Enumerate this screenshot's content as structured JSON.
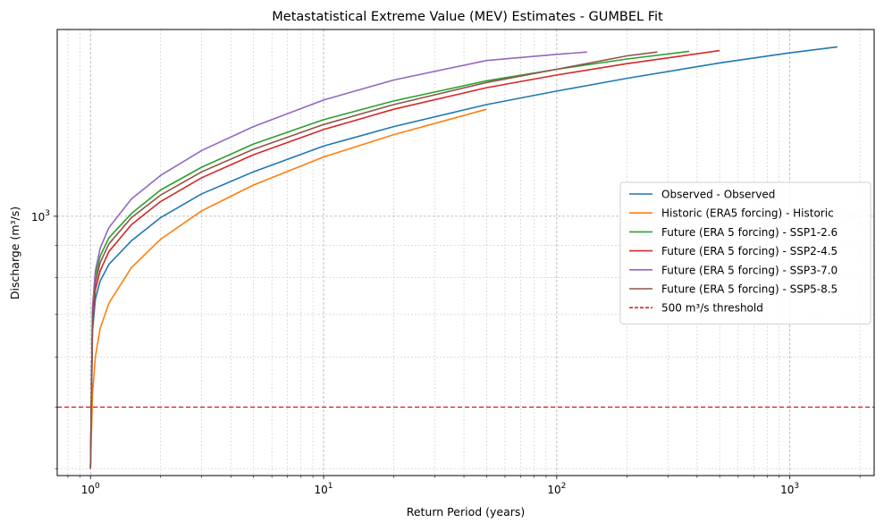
{
  "chart_data": {
    "type": "line",
    "title": "Metastatistical Extreme Value (MEV) Estimates - GUMBEL Fit",
    "xlabel": "Return Period (years)",
    "ylabel": "Discharge (m³/s)",
    "x_scale": "log",
    "y_scale": "log",
    "xlim": [
      0.72,
      2300
    ],
    "ylim": [
      390,
      1970
    ],
    "x_major_ticks": [
      1,
      10,
      100,
      1000
    ],
    "x_tick_labels": [
      {
        "base": "10",
        "exp": "0"
      },
      {
        "base": "10",
        "exp": "1"
      },
      {
        "base": "10",
        "exp": "2"
      },
      {
        "base": "10",
        "exp": "3"
      }
    ],
    "y_major_ticks": [
      1000
    ],
    "y_tick_labels": [
      {
        "base": "10",
        "exp": "3"
      }
    ],
    "y_minor_ticks": [
      400,
      500,
      600,
      700,
      800,
      900,
      2000
    ],
    "grid": true,
    "legend_position": "center-right",
    "series": [
      {
        "name": "Observed - Observed",
        "color": "#1f77b4",
        "style": "solid",
        "x": [
          1.0,
          1.02,
          1.05,
          1.1,
          1.2,
          1.5,
          2,
          3,
          5,
          10,
          20,
          50,
          100,
          200,
          500,
          1000,
          1600
        ],
        "y": [
          400,
          660,
          740,
          790,
          840,
          915,
          995,
          1085,
          1175,
          1290,
          1385,
          1500,
          1575,
          1650,
          1745,
          1810,
          1850
        ]
      },
      {
        "name": "Historic (ERA5 forcing) - Historic",
        "color": "#ff7f0e",
        "style": "solid",
        "x": [
          1.0,
          1.02,
          1.05,
          1.1,
          1.2,
          1.5,
          2,
          3,
          5,
          10,
          20,
          50
        ],
        "y": [
          400,
          525,
          600,
          665,
          730,
          830,
          920,
          1020,
          1120,
          1240,
          1345,
          1475
        ]
      },
      {
        "name": "Future (ERA 5 forcing) - SSP1-2.6",
        "color": "#2ca02c",
        "style": "solid",
        "x": [
          1.0,
          1.02,
          1.05,
          1.1,
          1.2,
          1.5,
          2,
          3,
          5,
          10,
          20,
          50,
          100,
          200,
          370
        ],
        "y": [
          400,
          710,
          805,
          865,
          925,
          1010,
          1100,
          1195,
          1300,
          1420,
          1520,
          1635,
          1705,
          1770,
          1820
        ]
      },
      {
        "name": "Future (ERA 5 forcing) - SSP2-4.5",
        "color": "#d62728",
        "style": "solid",
        "x": [
          1.0,
          1.02,
          1.05,
          1.1,
          1.2,
          1.5,
          2,
          3,
          5,
          10,
          20,
          50,
          100,
          200,
          500
        ],
        "y": [
          400,
          680,
          765,
          820,
          880,
          970,
          1055,
          1150,
          1250,
          1370,
          1475,
          1595,
          1670,
          1740,
          1825
        ]
      },
      {
        "name": "Future (ERA 5 forcing) - SSP3-7.0",
        "color": "#9467bd",
        "style": "solid",
        "x": [
          1.0,
          1.02,
          1.05,
          1.1,
          1.2,
          1.5,
          2,
          3,
          5,
          10,
          20,
          50,
          100,
          135
        ],
        "y": [
          400,
          720,
          820,
          890,
          960,
          1065,
          1160,
          1270,
          1385,
          1525,
          1640,
          1760,
          1800,
          1815
        ]
      },
      {
        "name": "Future (ERA 5 forcing) - SSP5-8.5",
        "color": "#8c564b",
        "style": "solid",
        "x": [
          1.0,
          1.02,
          1.05,
          1.1,
          1.2,
          1.5,
          2,
          3,
          5,
          10,
          20,
          50,
          100,
          200,
          270
        ],
        "y": [
          400,
          690,
          785,
          845,
          905,
          995,
          1080,
          1175,
          1275,
          1395,
          1500,
          1625,
          1705,
          1790,
          1815
        ]
      }
    ],
    "threshold": {
      "name": "500 m³/s threshold",
      "y": 500,
      "color": "#d62728",
      "style": "dashed"
    }
  }
}
